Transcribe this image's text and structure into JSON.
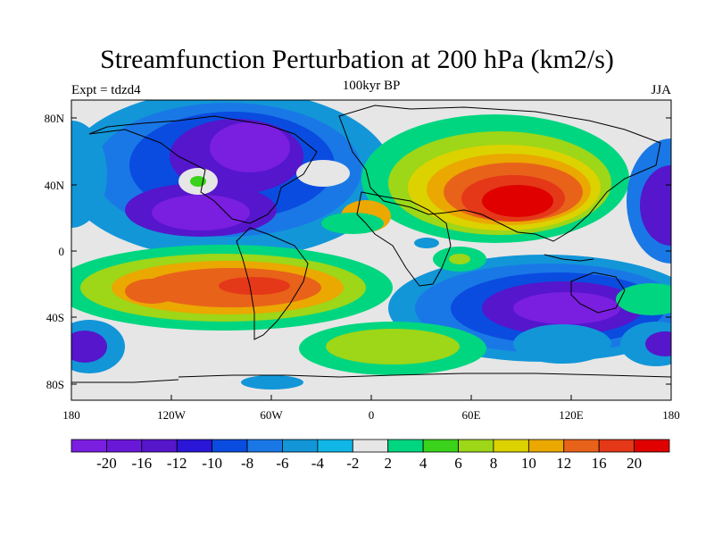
{
  "title": "Streamfunction Perturbation at 200 hPa (km2/s)",
  "left_label": "Expt = tdzd4",
  "center_label": "100kyr BP",
  "right_label": "JJA",
  "lat_ticks": [
    "80N",
    "40N",
    "0",
    "40S",
    "80S"
  ],
  "lon_ticks": [
    "180",
    "120W",
    "60W",
    "0",
    "60E",
    "120E",
    "180"
  ],
  "colorbar": {
    "labels": [
      "-20",
      "-16",
      "-12",
      "-10",
      "-8",
      "-6",
      "-4",
      "-2",
      "2",
      "4",
      "6",
      "8",
      "10",
      "12",
      "16",
      "20"
    ],
    "colors": [
      "#7a1ee0",
      "#6a18d8",
      "#5516cc",
      "#2a16d6",
      "#0a4ce0",
      "#1a78e6",
      "#1296d8",
      "#0fb6e6",
      "#e6e6e6",
      "#00d680",
      "#3ad21a",
      "#9ed618",
      "#dcd200",
      "#eaa800",
      "#e8621a",
      "#e43818",
      "#e00000"
    ]
  },
  "colors": {
    "background": "#ffffff",
    "land_outline": "#000000"
  }
}
